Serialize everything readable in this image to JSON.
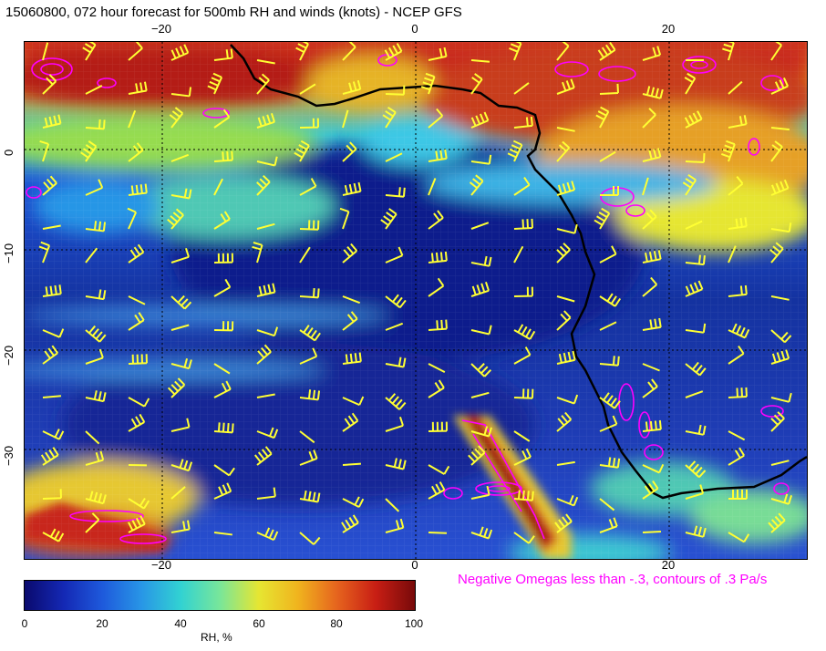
{
  "title": "15060800, 072 hour forecast for 500mb RH and winds (knots) - NCEP GFS",
  "map": {
    "lon_labels_top": [
      "−20",
      "0",
      "20"
    ],
    "lon_labels_bottom": [
      "−20",
      "0",
      "20"
    ],
    "lat_labels": [
      "0",
      "−10",
      "−20",
      "−30"
    ],
    "colors": {
      "wind_barb": "#ffff33",
      "omega_contour": "#ff00ff",
      "coastline": "#000000"
    }
  },
  "note": "Negative Omegas less than -.3, contours of .3 Pa/s",
  "colorbar": {
    "ticks": [
      "0",
      "20",
      "40",
      "60",
      "80",
      "100"
    ],
    "label": "RH, %"
  }
}
